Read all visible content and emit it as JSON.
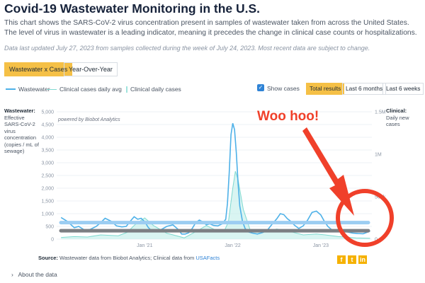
{
  "header": {
    "title": "Covid-19 Wastewater Monitoring in the U.S.",
    "description": "This chart shows the SARS-CoV-2 virus concentration present in samples of wastewater taken from across the United States. The level of virus in wastewater is a leading indicator, meaning it precedes the change in clinical case counts or hospitalizations.",
    "updated": "Data last updated July 27, 2023 from samples collected during the week of July 24, 2023. Most recent data are subject to change."
  },
  "view_toggle": {
    "active": "Wastewater x Cases",
    "other": "Year-Over-Year"
  },
  "legend": {
    "wastewater": "Wastewater",
    "daily_avg": "Clinical cases daily avg",
    "daily_cases": "Clinical daily cases"
  },
  "controls": {
    "show_cases": "Show cases",
    "show_cases_checked": true,
    "ranges": [
      "Total results",
      "Last 6 months",
      "Last 6 weeks"
    ],
    "active_range": "Total results"
  },
  "axes": {
    "left_title": "Wastewater:",
    "left_desc": "Effective SARS-CoV-2 virus concentration (copies / mL of sewage)",
    "right_title": "Clinical:",
    "right_desc": "Daily new cases",
    "powered_by": "powered by Biobot Analytics"
  },
  "annotation": {
    "text": "Woo hoo!",
    "color": "#f0402a"
  },
  "source": {
    "label": "Source:",
    "text": "Wastewater data from Biobot Analytics; Clinical data from",
    "link": "USAFacts"
  },
  "share_icons": [
    "facebook-icon",
    "twitter-icon",
    "linkedin-icon"
  ],
  "about": "About the data",
  "colors": {
    "accent": "#f5c046",
    "wastewater": "#4eb1e8",
    "cases": "#7fd9d0",
    "overlay_blue": "#9ccdf2",
    "overlay_gray": "#7c7f83"
  },
  "chart_data": {
    "type": "line",
    "x_ticks": [
      "Jan '21",
      "Jan '22",
      "Jan '23"
    ],
    "y_left": {
      "ticks": [
        "0",
        "500",
        "1,000",
        "1,500",
        "2,000",
        "2,500",
        "3,000",
        "3,500",
        "4,000",
        "4,500",
        "5,000"
      ],
      "ylim": [
        0,
        5000
      ]
    },
    "y_right": {
      "ticks": [
        "0",
        "500k",
        "1M",
        "1.5M"
      ],
      "ylim": [
        0,
        1500000
      ]
    },
    "xlim": [
      2020.0,
      2023.58
    ],
    "series": [
      {
        "name": "Wastewater",
        "type": "line",
        "axis": "left",
        "x": [
          2020.05,
          2020.12,
          2020.2,
          2020.25,
          2020.32,
          2020.38,
          2020.45,
          2020.5,
          2020.55,
          2020.62,
          2020.68,
          2020.74,
          2020.79,
          2020.84,
          2020.88,
          2020.92,
          2020.96,
          2021.0,
          2021.04,
          2021.08,
          2021.12,
          2021.18,
          2021.25,
          2021.32,
          2021.38,
          2021.42,
          2021.46,
          2021.5,
          2021.54,
          2021.58,
          2021.62,
          2021.66,
          2021.7,
          2021.74,
          2021.78,
          2021.83,
          2021.88,
          2021.92,
          2021.94,
          2021.96,
          2021.98,
          2022.0,
          2022.02,
          2022.04,
          2022.06,
          2022.08,
          2022.11,
          2022.14,
          2022.18,
          2022.22,
          2022.28,
          2022.34,
          2022.4,
          2022.45,
          2022.5,
          2022.54,
          2022.58,
          2022.62,
          2022.66,
          2022.7,
          2022.75,
          2022.8,
          2022.85,
          2022.9,
          2022.95,
          2023.0,
          2023.04,
          2023.08,
          2023.12,
          2023.18,
          2023.24,
          2023.3,
          2023.36,
          2023.42,
          2023.48,
          2023.52,
          2023.56
        ],
        "y": [
          850,
          700,
          450,
          500,
          350,
          380,
          500,
          650,
          820,
          700,
          520,
          480,
          500,
          720,
          880,
          780,
          820,
          680,
          460,
          320,
          300,
          360,
          500,
          560,
          380,
          200,
          200,
          250,
          420,
          650,
          750,
          680,
          560,
          600,
          540,
          520,
          600,
          780,
          1400,
          2600,
          4100,
          4550,
          4300,
          3400,
          2200,
          1300,
          700,
          420,
          280,
          240,
          200,
          260,
          380,
          600,
          800,
          1000,
          960,
          800,
          700,
          550,
          420,
          520,
          750,
          1050,
          1100,
          950,
          700,
          500,
          380,
          310,
          320,
          280,
          240,
          220,
          210,
          260,
          320
        ]
      },
      {
        "name": "Clinical cases daily avg",
        "type": "line",
        "axis": "right",
        "x": [
          2020.05,
          2020.2,
          2020.35,
          2020.5,
          2020.6,
          2020.7,
          2020.8,
          2020.9,
          2021.0,
          2021.1,
          2021.25,
          2021.45,
          2021.6,
          2021.7,
          2021.8,
          2021.9,
          2021.95,
          2022.0,
          2022.03,
          2022.06,
          2022.12,
          2022.2,
          2022.35,
          2022.5,
          2022.65,
          2022.8,
          2022.95,
          2023.05,
          2023.2,
          2023.4,
          2023.56
        ],
        "y": [
          20000,
          30000,
          25000,
          50000,
          45000,
          40000,
          80000,
          180000,
          250000,
          160000,
          70000,
          15000,
          100000,
          160000,
          110000,
          90000,
          200000,
          600000,
          800000,
          700000,
          350000,
          100000,
          80000,
          120000,
          90000,
          50000,
          60000,
          50000,
          30000,
          15000,
          10000
        ]
      }
    ],
    "overlay_lines": [
      {
        "axis": "left",
        "y": 650,
        "color": "#9ccdf2"
      },
      {
        "axis": "left",
        "y": 330,
        "color": "#7c7f83"
      }
    ]
  }
}
